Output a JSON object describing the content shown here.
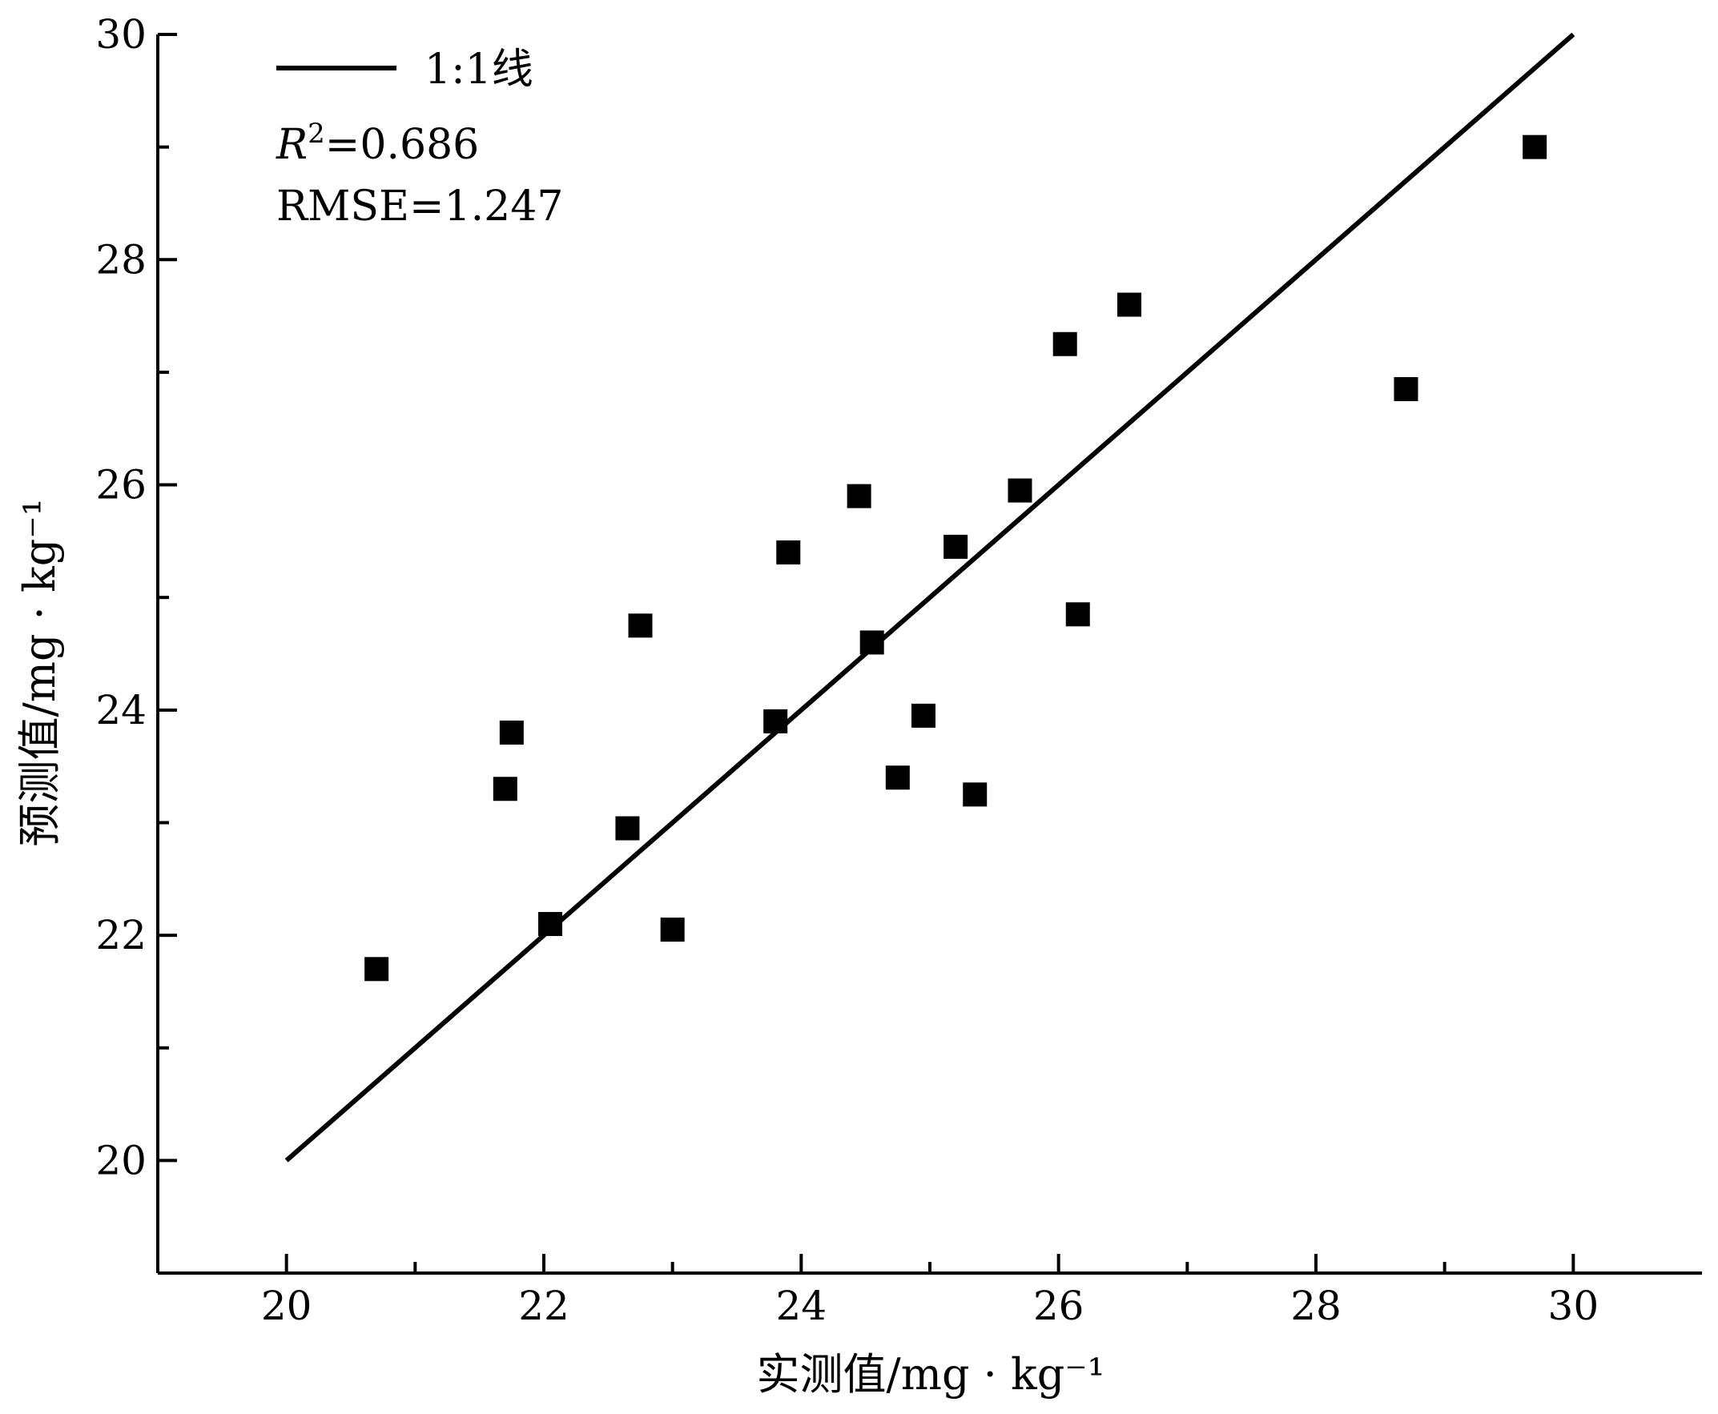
{
  "chart_data": {
    "type": "scatter",
    "xlabel": "实测值/mg · kg⁻¹",
    "ylabel": "预测值/mg · kg⁻¹",
    "xlim": [
      19,
      31
    ],
    "ylim": [
      19,
      30
    ],
    "x_ticks": [
      20,
      22,
      24,
      26,
      28,
      30
    ],
    "y_ticks": [
      20,
      22,
      24,
      26,
      28,
      30
    ],
    "legend": {
      "label": "1:1线",
      "position": "top-left"
    },
    "stats": {
      "r2_symbol": "R",
      "r2_superscript": "2",
      "r2_value": "=0.686",
      "rmse": "RMSE=1.247"
    },
    "reference_line": {
      "x": [
        20,
        30
      ],
      "y": [
        20,
        30
      ]
    },
    "points": [
      {
        "x": 20.7,
        "y": 21.7
      },
      {
        "x": 21.7,
        "y": 23.3
      },
      {
        "x": 21.75,
        "y": 23.8
      },
      {
        "x": 22.05,
        "y": 22.1
      },
      {
        "x": 22.65,
        "y": 22.95
      },
      {
        "x": 22.75,
        "y": 24.75
      },
      {
        "x": 23.0,
        "y": 22.05
      },
      {
        "x": 23.8,
        "y": 23.9
      },
      {
        "x": 23.9,
        "y": 25.4
      },
      {
        "x": 24.45,
        "y": 25.9
      },
      {
        "x": 24.55,
        "y": 24.6
      },
      {
        "x": 24.75,
        "y": 23.4
      },
      {
        "x": 24.95,
        "y": 23.95
      },
      {
        "x": 25.2,
        "y": 25.45
      },
      {
        "x": 25.35,
        "y": 23.25
      },
      {
        "x": 25.7,
        "y": 25.95
      },
      {
        "x": 26.05,
        "y": 27.25
      },
      {
        "x": 26.15,
        "y": 24.85
      },
      {
        "x": 26.55,
        "y": 27.6
      },
      {
        "x": 28.7,
        "y": 26.85
      },
      {
        "x": 29.7,
        "y": 29.0
      }
    ]
  }
}
